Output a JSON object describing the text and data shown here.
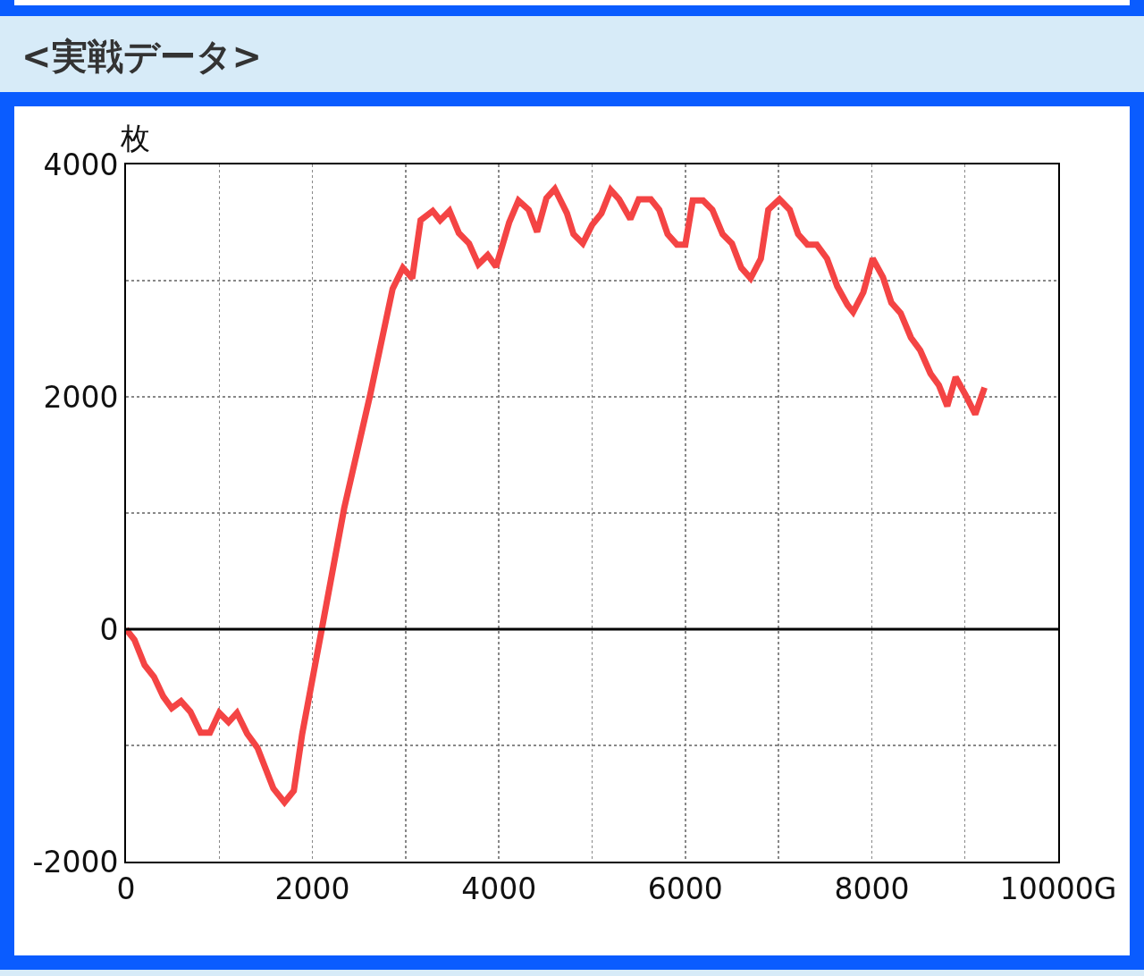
{
  "chart_data": {
    "type": "line",
    "title": "<実戦データ>",
    "ylabel": "枚",
    "x": [
      0,
      90,
      200,
      300,
      400,
      490,
      590,
      690,
      800,
      900,
      1000,
      1100,
      1190,
      1300,
      1410,
      1580,
      1700,
      1800,
      1890,
      2100,
      2340,
      2620,
      2860,
      2970,
      3070,
      3160,
      3290,
      3370,
      3470,
      3570,
      3680,
      3780,
      3880,
      3970,
      4110,
      4210,
      4320,
      4410,
      4510,
      4600,
      4730,
      4800,
      4900,
      5000,
      5100,
      5200,
      5290,
      5410,
      5500,
      5630,
      5720,
      5810,
      5910,
      6000,
      6080,
      6190,
      6290,
      6400,
      6500,
      6600,
      6700,
      6810,
      6890,
      7010,
      7120,
      7210,
      7310,
      7410,
      7520,
      7630,
      7740,
      7800,
      7910,
      8010,
      8120,
      8210,
      8310,
      8420,
      8520,
      8630,
      8720,
      8810,
      8900,
      9010,
      9110,
      9210
    ],
    "series": [
      {
        "color": "#f44444",
        "values": [
          0,
          -90,
          -310,
          -410,
          -580,
          -680,
          -620,
          -710,
          -890,
          -890,
          -720,
          -800,
          -720,
          -900,
          -1020,
          -1370,
          -1490,
          -1390,
          -900,
          0,
          1040,
          2020,
          2930,
          3110,
          3020,
          3520,
          3600,
          3520,
          3600,
          3410,
          3320,
          3140,
          3220,
          3120,
          3500,
          3690,
          3610,
          3420,
          3710,
          3790,
          3580,
          3400,
          3320,
          3480,
          3580,
          3780,
          3700,
          3530,
          3700,
          3700,
          3610,
          3400,
          3310,
          3310,
          3690,
          3690,
          3610,
          3400,
          3320,
          3110,
          3020,
          3190,
          3610,
          3700,
          3610,
          3400,
          3310,
          3310,
          3190,
          2950,
          2790,
          2730,
          2900,
          3190,
          3030,
          2810,
          2720,
          2510,
          2400,
          2200,
          2100,
          1920,
          2170,
          2010,
          1850,
          2080
        ]
      }
    ],
    "xlim": [
      0,
      10000
    ],
    "ylim": [
      -2000,
      4000
    ],
    "xticks": [
      0,
      {
        "value": 1000,
        "label": null
      },
      2000,
      {
        "value": 3000,
        "label": null
      },
      4000,
      {
        "value": 5000,
        "label": null
      },
      6000,
      {
        "value": 7000,
        "label": null
      },
      8000,
      {
        "value": 9000,
        "label": null
      },
      {
        "value": 10000,
        "label": "10000G"
      }
    ],
    "yticks": [
      -2000,
      {
        "value": -1000,
        "label": null
      },
      0,
      {
        "value": 1000,
        "label": null
      },
      2000,
      {
        "value": 3000,
        "label": null
      },
      4000
    ],
    "grid": true,
    "marker": "none",
    "line_style": "solid",
    "ref_lines": [
      {
        "axis": "y",
        "value": 0,
        "label": null,
        "color": "#000000"
      }
    ]
  }
}
